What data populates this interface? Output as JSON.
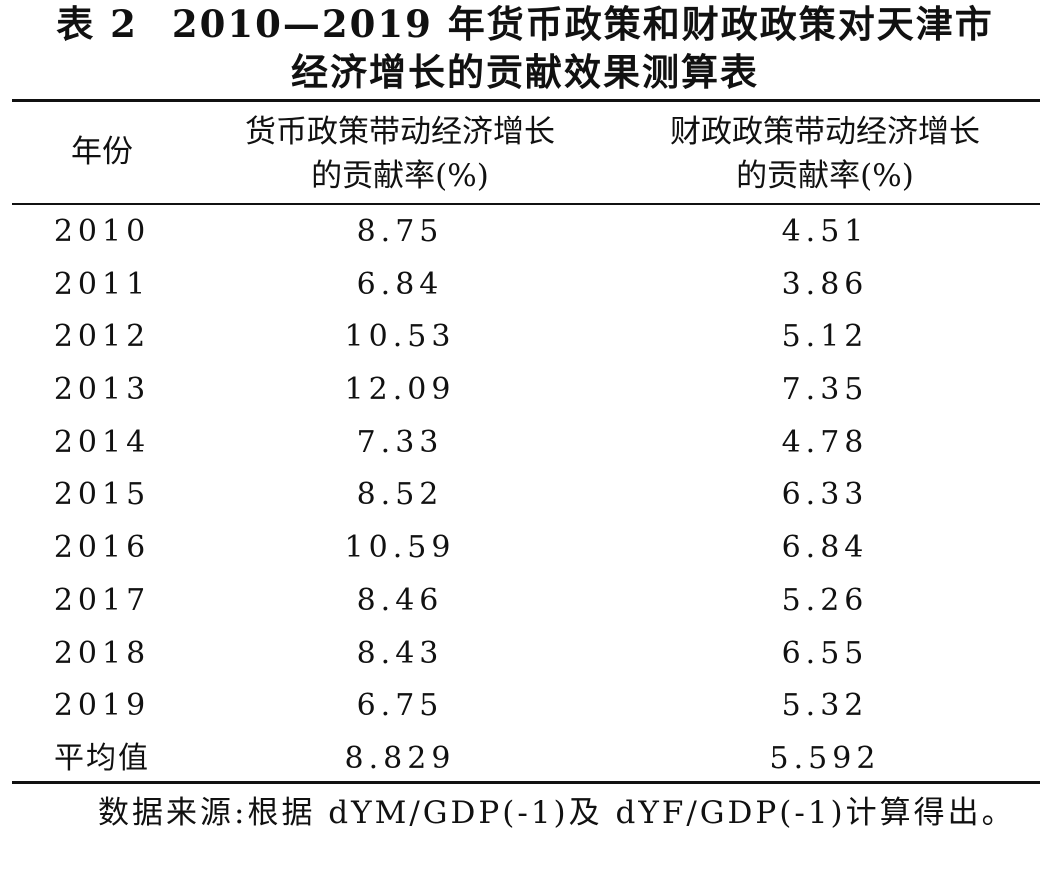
{
  "title": {
    "label": "表 2",
    "line1": "2010—2019 年货币政策和财政政策对天津市",
    "line2": "经济增长的贡献效果测算表"
  },
  "table": {
    "headers": {
      "year": "年份",
      "money_line1": "货币政策带动经济增长",
      "money_line2": "的贡献率(%)",
      "fiscal_line1": "财政政策带动经济增长",
      "fiscal_line2": "的贡献率(%)"
    },
    "rows": [
      {
        "year": "2010",
        "money": "8.75",
        "fiscal": "4.51"
      },
      {
        "year": "2011",
        "money": "6.84",
        "fiscal": "3.86"
      },
      {
        "year": "2012",
        "money": "10.53",
        "fiscal": "5.12"
      },
      {
        "year": "2013",
        "money": "12.09",
        "fiscal": "7.35"
      },
      {
        "year": "2014",
        "money": "7.33",
        "fiscal": "4.78"
      },
      {
        "year": "2015",
        "money": "8.52",
        "fiscal": "6.33"
      },
      {
        "year": "2016",
        "money": "10.59",
        "fiscal": "6.84"
      },
      {
        "year": "2017",
        "money": "8.46",
        "fiscal": "5.26"
      },
      {
        "year": "2018",
        "money": "8.43",
        "fiscal": "6.55"
      },
      {
        "year": "2019",
        "money": "6.75",
        "fiscal": "5.32"
      }
    ],
    "average": {
      "year": "平均值",
      "money": "8.829",
      "fiscal": "5.592"
    }
  },
  "note": "数据来源:根据 dYM/GDP(-1)及 dYF/GDP(-1)计算得出。"
}
